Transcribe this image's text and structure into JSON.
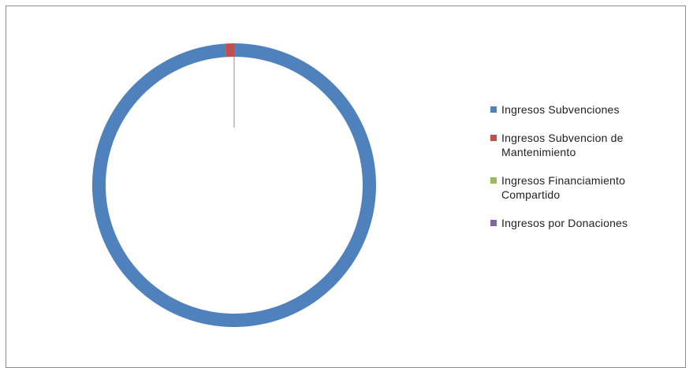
{
  "chart_data": {
    "type": "pie",
    "style": "donut",
    "title": "",
    "legend_position": "right",
    "categories": [
      "Ingresos Subvenciones",
      "Ingresos Subvencion de Mantenimiento",
      "Ingresos Financiamiento Compartido",
      "Ingresos por Donaciones"
    ],
    "values": [
      99,
      1,
      0,
      0
    ],
    "colors": [
      "#4f81bd",
      "#c0504d",
      "#9bbb59",
      "#8064a2"
    ]
  }
}
